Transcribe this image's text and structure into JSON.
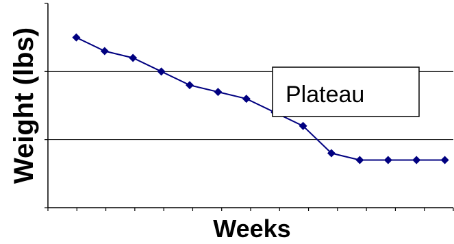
{
  "chart_data": {
    "type": "line",
    "title": "",
    "xlabel": "Weeks",
    "ylabel": "Weight (lbs)",
    "x": [
      1,
      2,
      3,
      4,
      5,
      6,
      7,
      8,
      9,
      10,
      11,
      12,
      13,
      14
    ],
    "series": [
      {
        "values": [
          8.0,
          7.6,
          7.4,
          7.0,
          6.6,
          6.4,
          6.2,
          5.8,
          5.4,
          4.6,
          4.4,
          4.4,
          4.4,
          4.4
        ]
      }
    ],
    "ylim": [
      3,
      9
    ],
    "xlim": [
      0,
      14.3
    ],
    "y_gridlines": [
      5,
      7
    ],
    "y_ticks_labeled": false,
    "x_ticks_labeled": false,
    "grid": true,
    "legend": "none",
    "annotations": [
      {
        "text": "Plateau"
      }
    ],
    "colors": {
      "series": "#000080",
      "grid": "#000000",
      "axis": "#000000"
    }
  }
}
